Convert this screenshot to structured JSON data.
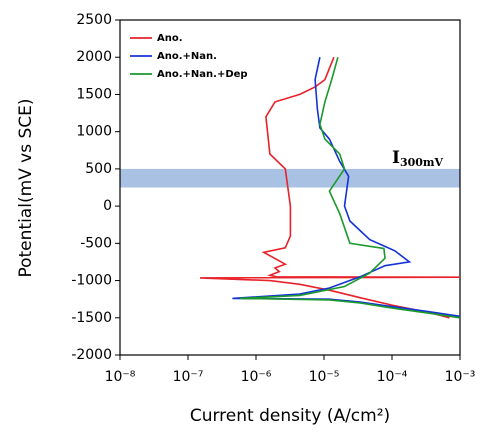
{
  "chart_data": {
    "type": "line",
    "xlabel": "Current density (A/cm²)",
    "ylabel": "Potential(mV vs SCE)",
    "xscale": "log",
    "xlim": [
      1e-08,
      0.001
    ],
    "ylim": [
      -2000,
      2500
    ],
    "xticks": [
      {
        "value": 1e-08,
        "label": "10⁻⁸"
      },
      {
        "value": 1e-07,
        "label": "10⁻⁷"
      },
      {
        "value": 1e-06,
        "label": "10⁻⁶"
      },
      {
        "value": 1e-05,
        "label": "10⁻⁵"
      },
      {
        "value": 0.0001,
        "label": "10⁻⁴"
      },
      {
        "value": 0.001,
        "label": "10⁻³"
      }
    ],
    "yticks": [
      -2000,
      -1500,
      -1000,
      -500,
      0,
      500,
      1000,
      1500,
      2000,
      2500
    ],
    "legend": "upper left",
    "band": {
      "range": [
        250,
        500
      ],
      "color": "#a9c1e2"
    },
    "annotation": {
      "text": "I",
      "subscript": "300mV"
    },
    "series": [
      {
        "name": "Ano.",
        "color": "#e8222a",
        "x": [
          0.0007,
          0.00036,
          0.0001,
          3.4e-05,
          1.2e-05,
          4.4e-06,
          1.6e-06,
          1.5e-07,
          0.001,
          2e-06,
          1.6e-06,
          2.2e-06,
          1.9e-06,
          2.7e-06,
          1.3e-06,
          2.7e-06,
          3.2e-06,
          3.2e-06,
          2.7e-06,
          1.6e-06,
          1.4e-06,
          1.9e-06,
          4.4e-06,
          7.4e-06,
          1.03e-05,
          1.4e-05
        ],
        "values": [
          -1500,
          -1430,
          -1330,
          -1230,
          -1130,
          -1050,
          -1000,
          -965,
          -955,
          -950,
          -930,
          -880,
          -830,
          -780,
          -620,
          -560,
          -400,
          0,
          500,
          700,
          1200,
          1400,
          1500,
          1600,
          1700,
          2000
        ]
      },
      {
        "name": "Ano.+Nan.",
        "color": "#1432d8",
        "x": [
          0.001,
          0.00036,
          0.0001,
          3.4e-05,
          1.2e-05,
          4.5e-07,
          4.4e-06,
          1.2e-05,
          3.4e-05,
          7.9e-05,
          0.00018,
          0.00011,
          4.7e-05,
          2.4e-05,
          2e-05,
          2.3e-05,
          1.7e-05,
          1.2e-05,
          8.7e-06,
          8e-06,
          7.4e-06,
          8.7e-06
        ],
        "values": [
          -1480,
          -1420,
          -1350,
          -1290,
          -1250,
          -1240,
          -1180,
          -1100,
          -950,
          -800,
          -750,
          -600,
          -450,
          -200,
          0,
          400,
          600,
          900,
          1050,
          1300,
          1700,
          2000
        ]
      },
      {
        "name": "Ano.+Nan.+Dep",
        "color": "#1a9a2a",
        "x": [
          0.001,
          0.00036,
          0.0001,
          3.4e-05,
          1.2e-05,
          5.8e-07,
          4.4e-06,
          2e-05,
          4.7e-05,
          7.9e-05,
          7.6e-05,
          2.4e-05,
          1.7e-05,
          1.2e-05,
          2e-05,
          1.7e-05,
          1.03e-05,
          8.7e-06,
          1.03e-05,
          1.3e-05,
          1.6e-05
        ],
        "values": [
          -1500,
          -1440,
          -1370,
          -1300,
          -1260,
          -1240,
          -1200,
          -1080,
          -900,
          -700,
          -570,
          -500,
          -100,
          200,
          500,
          700,
          900,
          1100,
          1400,
          1700,
          2000
        ]
      }
    ]
  }
}
